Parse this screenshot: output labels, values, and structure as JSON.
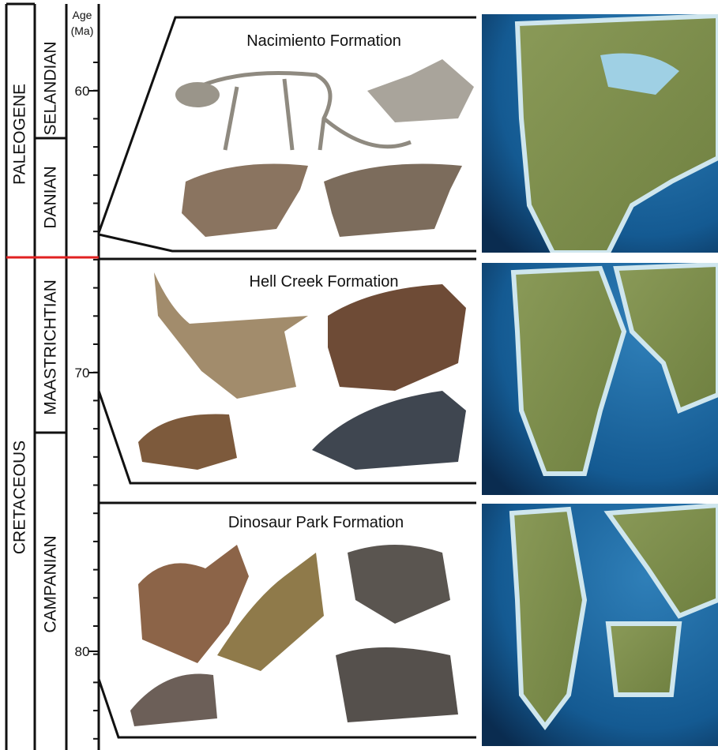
{
  "timescale": {
    "periods": [
      "PALEOGENE",
      "CRETACEOUS"
    ],
    "stages": [
      "SELANDIAN",
      "DANIAN",
      "MAASTRICHTIAN",
      "CAMPANIAN"
    ],
    "age_axis": {
      "label_lines": [
        "Age",
        "(Ma)"
      ],
      "ticks": [
        "60",
        "70",
        "80"
      ]
    }
  },
  "panels": [
    {
      "title": "Nacimiento Formation"
    },
    {
      "title": "Hell Creek Formation"
    },
    {
      "title": "Dinosaur Park Formation"
    }
  ]
}
